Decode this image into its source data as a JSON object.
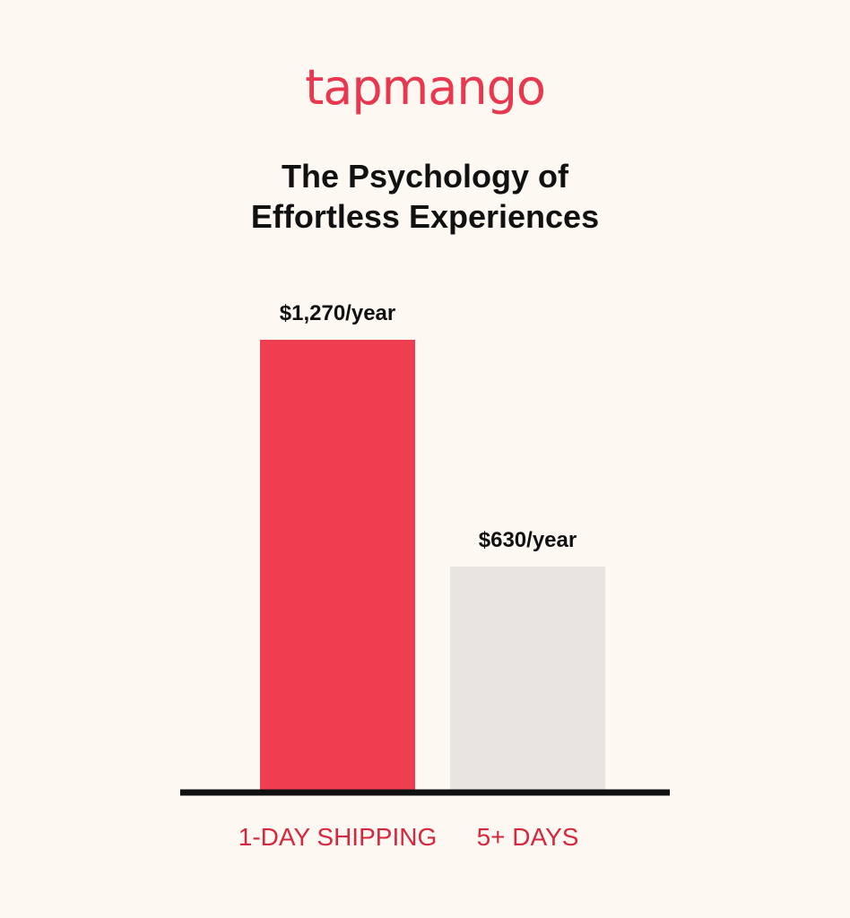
{
  "brand": {
    "name": "tapmango",
    "color": "#E8384F"
  },
  "title_lines": [
    "The Psychology of",
    "Effortless Experiences"
  ],
  "chart_data": {
    "type": "bar",
    "title": "The Psychology of Effortless Experiences",
    "categories": [
      "1-DAY SHIPPING",
      "5+ DAYS"
    ],
    "values": [
      1270,
      630
    ],
    "data_labels": [
      "$1,270/year",
      "$630/year"
    ],
    "bar_colors": [
      "#EF3E4F",
      "#E8E4E0"
    ],
    "label_color": "#D4283E",
    "ylim": [
      0,
      1270
    ],
    "grid": false,
    "legend": "none"
  }
}
